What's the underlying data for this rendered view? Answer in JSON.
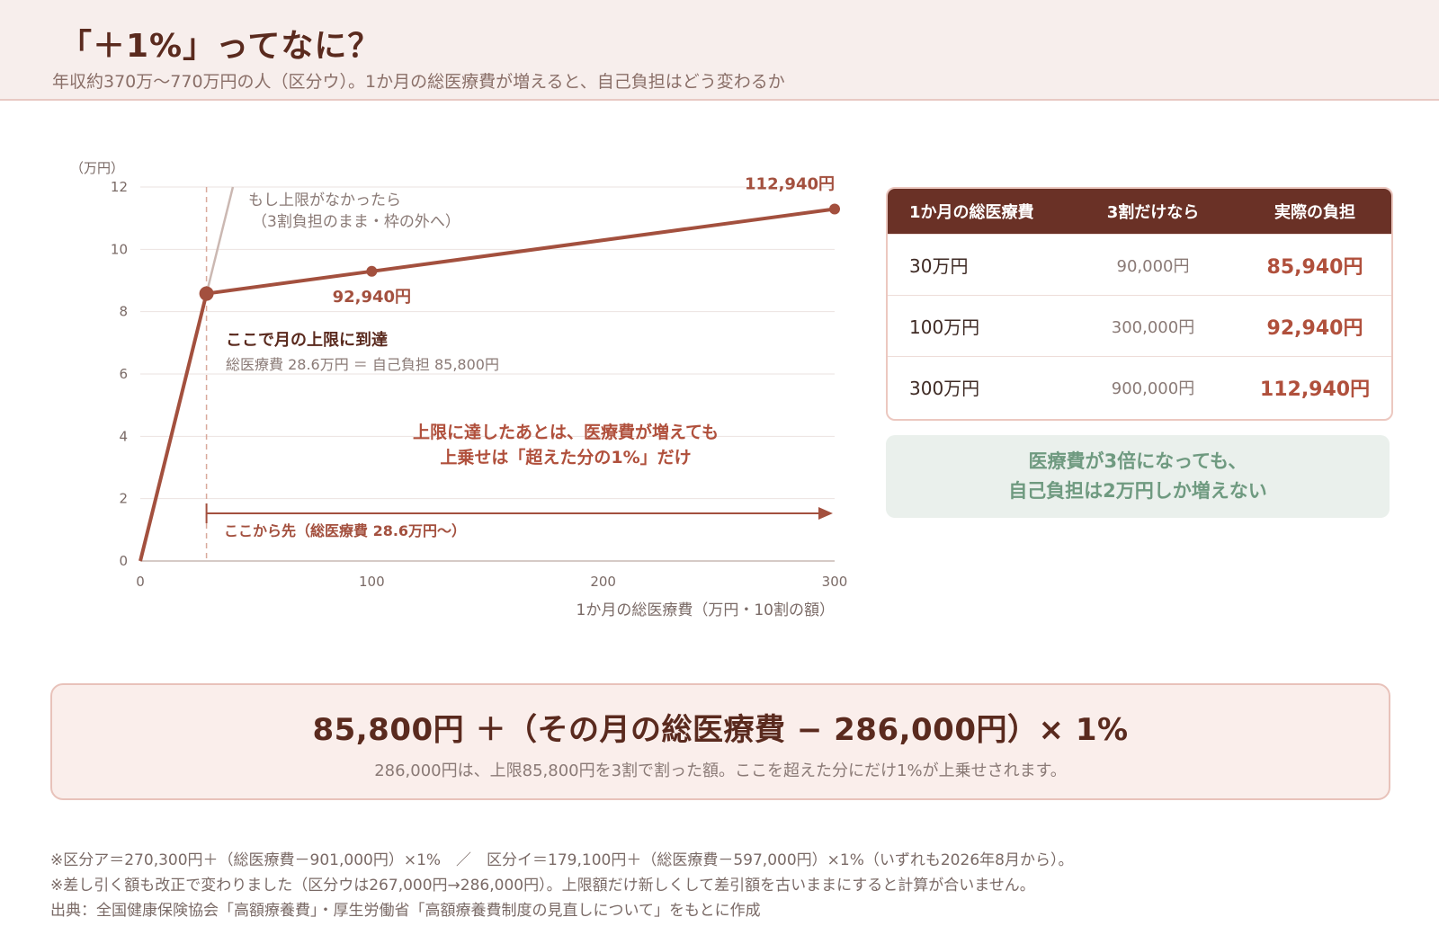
{
  "header": {
    "title": "「＋1%」ってなに？",
    "subtitle": "年収約370万〜770万円の人（区分ウ）。1か月の総医療費が増えると、自己負担はどう変わるか"
  },
  "colors": {
    "accent": "#b0503c",
    "dark": "#5a2a1e",
    "header_bg": "#f7eeec",
    "callout_green": "#6f9a80"
  },
  "chart_data": {
    "type": "line",
    "ylabel": "（万円）",
    "xlabel": "1か月の総医療費（万円・10割の額）",
    "xlim": [
      0,
      300
    ],
    "ylim": [
      0,
      12
    ],
    "xticks": [
      "0",
      "100",
      "200",
      "300"
    ],
    "yticks": [
      "0",
      "2",
      "4",
      "6",
      "8",
      "10",
      "12"
    ],
    "grid": true,
    "series": [
      {
        "x": [
          0,
          28.6,
          100,
          300
        ],
        "y": [
          0,
          8.58,
          9.294,
          11.294
        ]
      }
    ],
    "uncapped_line": {
      "x": [
        28.6,
        40
      ],
      "y": [
        8.58,
        12
      ]
    },
    "threshold_x": 28.6,
    "point_labels": [
      {
        "x": 100,
        "text": "92,940円"
      },
      {
        "x": 300,
        "text": "112,940円"
      }
    ],
    "annotations": {
      "uncapped_line1": "もし上限がなかったら",
      "uncapped_line2": "（3割負担のまま・枠の外へ）",
      "cap_title": "ここで月の上限に到達",
      "cap_detail": "総医療費 28.6万円 ＝ 自己負担 85,800円",
      "after_line1": "上限に達したあとは、医療費が増えても",
      "after_line2": "上乗せは「超えた分の1%」だけ",
      "arrow_label": "ここから先（総医療費 28.6万円〜）"
    }
  },
  "table": {
    "headers": [
      "1か月の総医療費",
      "3割だけなら",
      "実際の負担"
    ],
    "rows": [
      {
        "total": "30万円",
        "three_pct": "90,000円",
        "actual": "85,940円"
      },
      {
        "total": "100万円",
        "three_pct": "300,000円",
        "actual": "92,940円"
      },
      {
        "total": "300万円",
        "three_pct": "900,000円",
        "actual": "112,940円"
      }
    ]
  },
  "callout": {
    "line1": "医療費が3倍になっても、",
    "line2": "自己負担は2万円しか増えない"
  },
  "formula": {
    "main": "85,800円 ＋（その月の総医療費 − 286,000円）× 1%",
    "note": "286,000円は、上限85,800円を3割で割った額。ここを超えた分にだけ1%が上乗せされます。"
  },
  "footnotes": [
    "※区分ア＝270,300円＋（総医療費－901,000円）×1%　／　区分イ＝179,100円＋（総医療費－597,000円）×1%（いずれも2026年8月から）。",
    "※差し引く額も改正で変わりました（区分ウは267,000円→286,000円）。上限額だけ新しくして差引額を古いままにすると計算が合いません。",
    "出典：全国健康保険協会「高額療養費」・厚生労働省「高額療養費制度の見直しについて」をもとに作成"
  ]
}
